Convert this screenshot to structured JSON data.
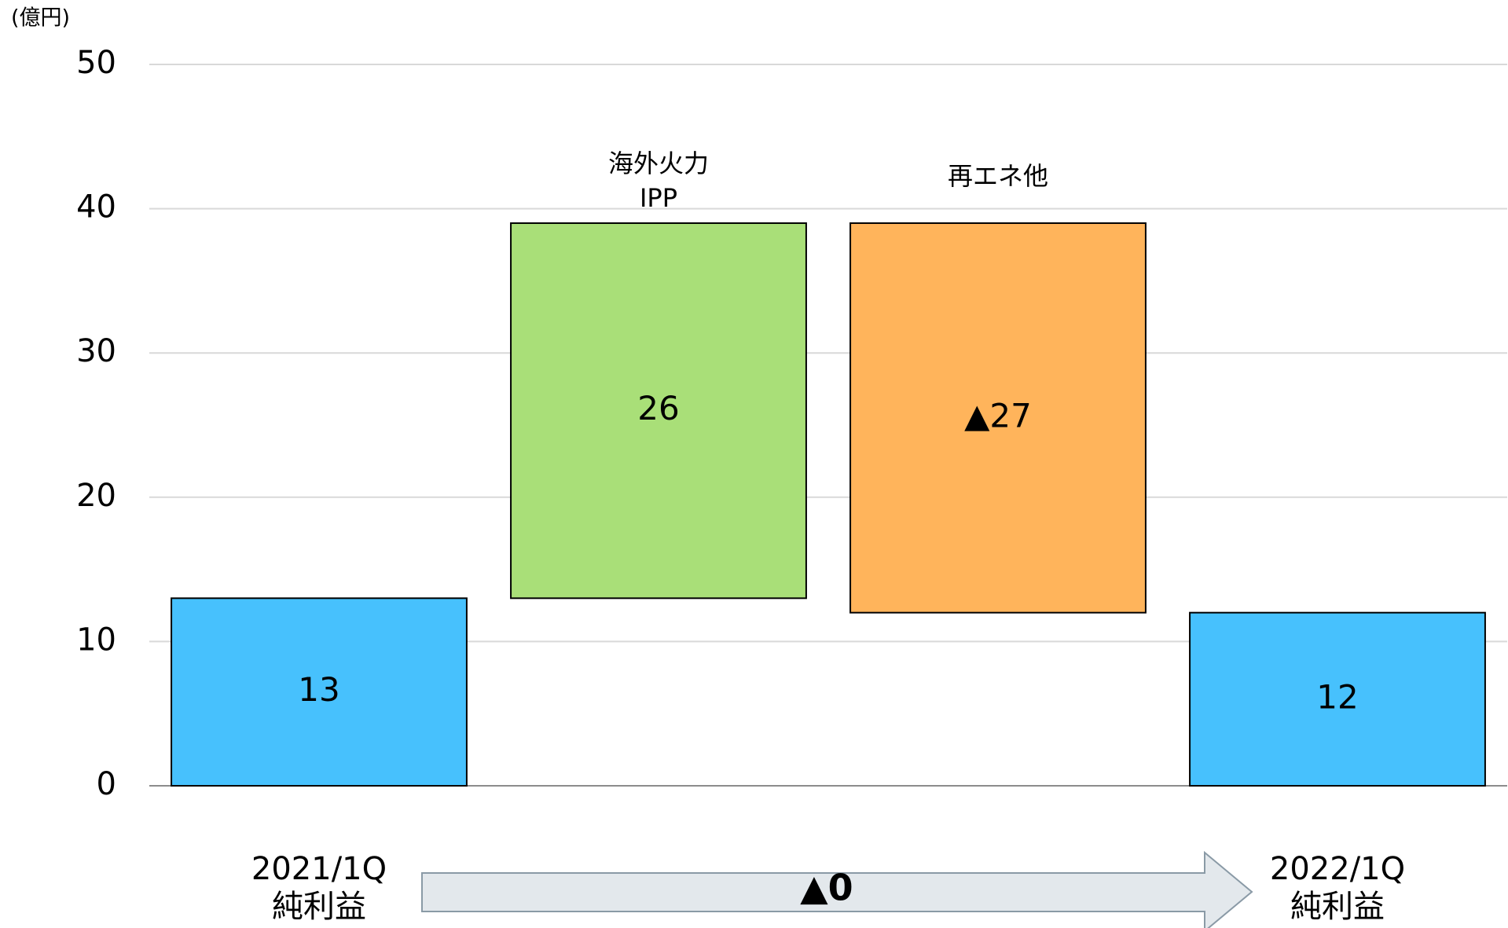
{
  "chart_data": {
    "type": "waterfall",
    "unit_label": "(億円)",
    "categories": [
      [
        "2021/1Q",
        "純利益"
      ],
      [
        "海外火力",
        "IPP"
      ],
      [
        "再エネ他"
      ],
      [
        "2022/1Q",
        "純利益"
      ]
    ],
    "values": [
      13,
      26,
      -27,
      12
    ],
    "value_labels": [
      "13",
      "26",
      "▲27",
      "12"
    ],
    "colors": [
      "#47c1fd",
      "#a9df78",
      "#ffb45b",
      "#47c1fd"
    ],
    "ylim": [
      0,
      50
    ],
    "yticks": [
      0,
      10,
      20,
      30,
      40,
      50
    ],
    "grid": true,
    "annotation": "▲0"
  }
}
